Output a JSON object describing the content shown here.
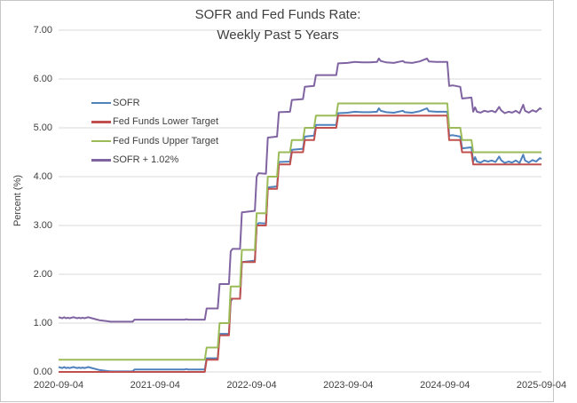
{
  "chart_data": {
    "type": "line",
    "title_line1": "SOFR and Fed Funds Rate:",
    "title_line2": "Weekly Past 5 Years",
    "ylabel": "Percent (%)",
    "ylim": [
      0,
      7
    ],
    "ytick_labels": [
      "0.00",
      "1.00",
      "2.00",
      "3.00",
      "4.00",
      "5.00",
      "6.00",
      "7.00"
    ],
    "xtick_labels": [
      "2020-09-04",
      "2021-09-04",
      "2022-09-04",
      "2023-09-04",
      "2024-09-04",
      "2025-09-04"
    ],
    "x_start": "2020-09-04",
    "x_end": "2025-09-04",
    "frequency": "weekly",
    "grid": "horizontal",
    "gridline_color": "#d9d9d9",
    "legend_position": "inside-upper-left",
    "series": [
      {
        "name": "SOFR",
        "color": "#4F81BD",
        "points": [
          [
            "2020-09-04",
            0.1
          ],
          [
            "2020-09-11",
            0.09
          ],
          [
            "2020-09-18",
            0.08
          ],
          [
            "2020-09-25",
            0.1
          ],
          [
            "2020-10-02",
            0.08
          ],
          [
            "2020-10-09",
            0.09
          ],
          [
            "2020-10-16",
            0.08
          ],
          [
            "2020-10-23",
            0.09
          ],
          [
            "2020-10-30",
            0.1
          ],
          [
            "2020-11-06",
            0.09
          ],
          [
            "2020-11-13",
            0.08
          ],
          [
            "2020-11-20",
            0.09
          ],
          [
            "2020-11-27",
            0.08
          ],
          [
            "2020-12-04",
            0.09
          ],
          [
            "2020-12-11",
            0.08
          ],
          [
            "2020-12-18",
            0.09
          ],
          [
            "2020-12-25",
            0.1
          ],
          [
            "2021-01-08",
            0.08
          ],
          [
            "2021-01-22",
            0.06
          ],
          [
            "2021-02-05",
            0.04
          ],
          [
            "2021-02-19",
            0.03
          ],
          [
            "2021-03-05",
            0.02
          ],
          [
            "2021-03-19",
            0.01
          ],
          [
            "2021-06-11",
            0.01
          ],
          [
            "2021-06-18",
            0.05
          ],
          [
            "2021-12-24",
            0.05
          ],
          [
            "2021-12-31",
            0.06
          ],
          [
            "2022-01-07",
            0.05
          ],
          [
            "2022-03-11",
            0.05
          ],
          [
            "2022-03-18",
            0.28
          ],
          [
            "2022-04-29",
            0.28
          ],
          [
            "2022-05-06",
            0.78
          ],
          [
            "2022-06-10",
            0.78
          ],
          [
            "2022-06-17",
            1.45
          ],
          [
            "2022-06-24",
            1.5
          ],
          [
            "2022-07-22",
            1.5
          ],
          [
            "2022-07-29",
            2.25
          ],
          [
            "2022-09-16",
            2.28
          ],
          [
            "2022-09-23",
            2.98
          ],
          [
            "2022-09-30",
            3.05
          ],
          [
            "2022-10-28",
            3.04
          ],
          [
            "2022-11-04",
            3.78
          ],
          [
            "2022-12-09",
            3.8
          ],
          [
            "2022-12-16",
            4.3
          ],
          [
            "2023-01-27",
            4.31
          ],
          [
            "2023-02-03",
            4.55
          ],
          [
            "2023-03-17",
            4.57
          ],
          [
            "2023-03-24",
            4.82
          ],
          [
            "2023-04-28",
            4.84
          ],
          [
            "2023-05-05",
            5.06
          ],
          [
            "2023-07-21",
            5.06
          ],
          [
            "2023-07-28",
            5.3
          ],
          [
            "2023-09-01",
            5.31
          ],
          [
            "2023-09-29",
            5.33
          ],
          [
            "2023-10-27",
            5.32
          ],
          [
            "2023-11-24",
            5.32
          ],
          [
            "2023-12-22",
            5.33
          ],
          [
            "2023-12-29",
            5.4
          ],
          [
            "2024-01-05",
            5.35
          ],
          [
            "2024-01-26",
            5.32
          ],
          [
            "2024-02-23",
            5.31
          ],
          [
            "2024-03-29",
            5.35
          ],
          [
            "2024-04-05",
            5.32
          ],
          [
            "2024-05-03",
            5.31
          ],
          [
            "2024-05-31",
            5.34
          ],
          [
            "2024-06-28",
            5.4
          ],
          [
            "2024-07-05",
            5.34
          ],
          [
            "2024-08-02",
            5.33
          ],
          [
            "2024-09-13",
            5.33
          ],
          [
            "2024-09-20",
            4.84
          ],
          [
            "2024-10-04",
            4.85
          ],
          [
            "2024-11-01",
            4.82
          ],
          [
            "2024-11-08",
            4.58
          ],
          [
            "2024-12-13",
            4.6
          ],
          [
            "2024-12-20",
            4.31
          ],
          [
            "2024-12-27",
            4.4
          ],
          [
            "2025-01-03",
            4.31
          ],
          [
            "2025-01-17",
            4.29
          ],
          [
            "2025-01-31",
            4.33
          ],
          [
            "2025-02-14",
            4.31
          ],
          [
            "2025-02-28",
            4.33
          ],
          [
            "2025-03-14",
            4.3
          ],
          [
            "2025-03-28",
            4.41
          ],
          [
            "2025-04-04",
            4.34
          ],
          [
            "2025-04-18",
            4.28
          ],
          [
            "2025-05-02",
            4.31
          ],
          [
            "2025-05-16",
            4.29
          ],
          [
            "2025-05-30",
            4.33
          ],
          [
            "2025-06-13",
            4.28
          ],
          [
            "2025-06-27",
            4.45
          ],
          [
            "2025-07-04",
            4.33
          ],
          [
            "2025-07-18",
            4.29
          ],
          [
            "2025-08-01",
            4.34
          ],
          [
            "2025-08-15",
            4.31
          ],
          [
            "2025-08-29",
            4.38
          ],
          [
            "2025-09-04",
            4.36
          ]
        ]
      },
      {
        "name": "Fed Funds Lower Target",
        "color": "#C0504D",
        "points": [
          [
            "2020-09-04",
            0.0
          ],
          [
            "2022-03-11",
            0.0
          ],
          [
            "2022-03-18",
            0.25
          ],
          [
            "2022-04-29",
            0.25
          ],
          [
            "2022-05-06",
            0.75
          ],
          [
            "2022-06-10",
            0.75
          ],
          [
            "2022-06-17",
            1.5
          ],
          [
            "2022-07-22",
            1.5
          ],
          [
            "2022-07-29",
            2.25
          ],
          [
            "2022-09-16",
            2.25
          ],
          [
            "2022-09-23",
            3.0
          ],
          [
            "2022-10-28",
            3.0
          ],
          [
            "2022-11-04",
            3.75
          ],
          [
            "2022-12-09",
            3.75
          ],
          [
            "2022-12-16",
            4.25
          ],
          [
            "2023-01-27",
            4.25
          ],
          [
            "2023-02-03",
            4.5
          ],
          [
            "2023-03-17",
            4.5
          ],
          [
            "2023-03-24",
            4.75
          ],
          [
            "2023-04-28",
            4.75
          ],
          [
            "2023-05-05",
            5.0
          ],
          [
            "2023-07-21",
            5.0
          ],
          [
            "2023-07-28",
            5.25
          ],
          [
            "2024-09-13",
            5.25
          ],
          [
            "2024-09-20",
            4.75
          ],
          [
            "2024-11-01",
            4.75
          ],
          [
            "2024-11-08",
            4.5
          ],
          [
            "2024-12-13",
            4.5
          ],
          [
            "2024-12-20",
            4.25
          ],
          [
            "2025-09-04",
            4.25
          ]
        ]
      },
      {
        "name": "Fed Funds Upper Target",
        "color": "#9BBB59",
        "points": [
          [
            "2020-09-04",
            0.25
          ],
          [
            "2022-03-11",
            0.25
          ],
          [
            "2022-03-18",
            0.5
          ],
          [
            "2022-04-29",
            0.5
          ],
          [
            "2022-05-06",
            1.0
          ],
          [
            "2022-06-10",
            1.0
          ],
          [
            "2022-06-17",
            1.75
          ],
          [
            "2022-07-22",
            1.75
          ],
          [
            "2022-07-29",
            2.5
          ],
          [
            "2022-09-16",
            2.5
          ],
          [
            "2022-09-23",
            3.25
          ],
          [
            "2022-10-28",
            3.25
          ],
          [
            "2022-11-04",
            4.0
          ],
          [
            "2022-12-09",
            4.0
          ],
          [
            "2022-12-16",
            4.5
          ],
          [
            "2023-01-27",
            4.5
          ],
          [
            "2023-02-03",
            4.75
          ],
          [
            "2023-03-17",
            4.75
          ],
          [
            "2023-03-24",
            5.0
          ],
          [
            "2023-04-28",
            5.0
          ],
          [
            "2023-05-05",
            5.25
          ],
          [
            "2023-07-21",
            5.25
          ],
          [
            "2023-07-28",
            5.5
          ],
          [
            "2024-09-13",
            5.5
          ],
          [
            "2024-09-20",
            5.0
          ],
          [
            "2024-11-01",
            5.0
          ],
          [
            "2024-11-08",
            4.75
          ],
          [
            "2024-12-13",
            4.75
          ],
          [
            "2024-12-20",
            4.5
          ],
          [
            "2025-09-04",
            4.5
          ]
        ]
      },
      {
        "name": "SOFR + 1.02%",
        "color": "#8064A2",
        "derived_from": "SOFR",
        "offset": 1.02
      }
    ]
  }
}
